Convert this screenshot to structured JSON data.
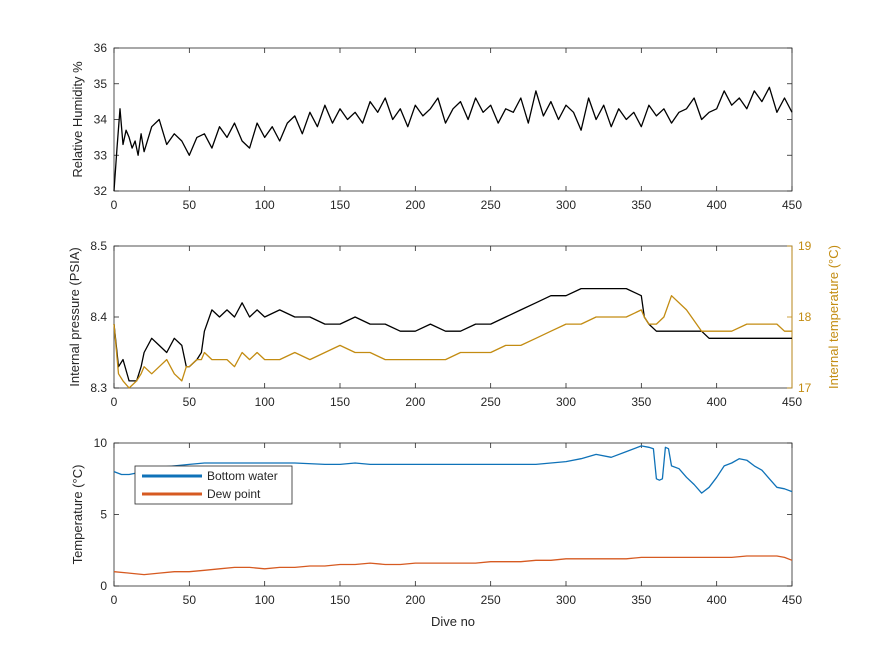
{
  "figure": {
    "xlabel": "Dive no"
  },
  "colors": {
    "black": "#000000",
    "gold": "#c38c12",
    "blue": "#0f72b8",
    "orange": "#d65a21",
    "axis": "#262626"
  },
  "chart_data": [
    {
      "type": "line",
      "xlabel": "",
      "ylabel": "Relative Humidity %",
      "xlim": [
        0,
        450
      ],
      "ylim": [
        32,
        36
      ],
      "xticks": [
        "0",
        "50",
        "100",
        "150",
        "200",
        "250",
        "300",
        "350",
        "400",
        "450"
      ],
      "yticks": [
        "32",
        "33",
        "34",
        "35",
        "36"
      ],
      "grid": false,
      "series": [
        {
          "color": "#000000",
          "x": [
            0,
            2,
            4,
            6,
            8,
            10,
            12,
            14,
            16,
            18,
            20,
            25,
            30,
            35,
            40,
            45,
            50,
            55,
            60,
            65,
            70,
            75,
            80,
            85,
            90,
            95,
            100,
            105,
            110,
            115,
            120,
            125,
            130,
            135,
            140,
            145,
            150,
            155,
            160,
            165,
            170,
            175,
            180,
            185,
            190,
            195,
            200,
            205,
            210,
            215,
            220,
            225,
            230,
            235,
            240,
            245,
            250,
            255,
            260,
            265,
            270,
            275,
            280,
            285,
            290,
            295,
            300,
            305,
            310,
            315,
            320,
            325,
            330,
            335,
            340,
            345,
            350,
            355,
            360,
            365,
            370,
            375,
            380,
            385,
            390,
            395,
            400,
            405,
            410,
            415,
            420,
            425,
            430,
            435,
            440,
            445,
            450
          ],
          "values": [
            32.0,
            33.2,
            34.3,
            33.3,
            33.7,
            33.5,
            33.2,
            33.4,
            33.0,
            33.6,
            33.1,
            33.8,
            34.0,
            33.3,
            33.6,
            33.4,
            33.0,
            33.5,
            33.6,
            33.2,
            33.8,
            33.5,
            33.9,
            33.4,
            33.2,
            33.9,
            33.5,
            33.8,
            33.4,
            33.9,
            34.1,
            33.6,
            34.2,
            33.8,
            34.4,
            33.9,
            34.3,
            34.0,
            34.2,
            33.9,
            34.5,
            34.2,
            34.6,
            34.0,
            34.3,
            33.8,
            34.4,
            34.1,
            34.3,
            34.6,
            33.9,
            34.3,
            34.5,
            34.0,
            34.6,
            34.2,
            34.4,
            33.9,
            34.3,
            34.2,
            34.6,
            33.9,
            34.8,
            34.1,
            34.5,
            34.0,
            34.4,
            34.2,
            33.7,
            34.6,
            34.0,
            34.4,
            33.8,
            34.3,
            34.0,
            34.2,
            33.8,
            34.4,
            34.1,
            34.3,
            33.9,
            34.2,
            34.3,
            34.6,
            34.0,
            34.2,
            34.3,
            34.8,
            34.4,
            34.6,
            34.3,
            34.8,
            34.5,
            34.9,
            34.2,
            34.6,
            34.2
          ]
        }
      ]
    },
    {
      "type": "line",
      "xlabel": "",
      "ylabel": "Internal pressure (PSIA)",
      "y2label": "Internal temperature (°C)",
      "xlim": [
        0,
        450
      ],
      "ylim": [
        8.3,
        8.5
      ],
      "y2lim": [
        17,
        19
      ],
      "xticks": [
        "0",
        "50",
        "100",
        "150",
        "200",
        "250",
        "300",
        "350",
        "400",
        "450"
      ],
      "yticks": [
        "8.3",
        "8.4",
        "8.5"
      ],
      "y2ticks": [
        "17",
        "18",
        "19"
      ],
      "grid": false,
      "series": [
        {
          "axis": "left",
          "color": "#000000",
          "x": [
            0,
            3,
            6,
            10,
            15,
            18,
            20,
            25,
            30,
            35,
            40,
            45,
            48,
            50,
            55,
            58,
            60,
            65,
            70,
            75,
            80,
            85,
            90,
            95,
            100,
            110,
            120,
            130,
            140,
            150,
            160,
            170,
            180,
            190,
            200,
            210,
            220,
            230,
            240,
            250,
            260,
            270,
            280,
            290,
            300,
            310,
            320,
            330,
            340,
            350,
            352,
            355,
            360,
            365,
            370,
            380,
            390,
            395,
            400,
            410,
            420,
            430,
            440,
            445,
            450
          ],
          "values": [
            8.39,
            8.33,
            8.34,
            8.31,
            8.31,
            8.33,
            8.35,
            8.37,
            8.36,
            8.35,
            8.37,
            8.36,
            8.33,
            8.33,
            8.34,
            8.35,
            8.38,
            8.41,
            8.4,
            8.41,
            8.4,
            8.42,
            8.4,
            8.41,
            8.4,
            8.41,
            8.4,
            8.4,
            8.39,
            8.39,
            8.4,
            8.39,
            8.39,
            8.38,
            8.38,
            8.39,
            8.38,
            8.38,
            8.39,
            8.39,
            8.4,
            8.41,
            8.42,
            8.43,
            8.43,
            8.44,
            8.44,
            8.44,
            8.44,
            8.43,
            8.4,
            8.39,
            8.38,
            8.38,
            8.38,
            8.38,
            8.38,
            8.37,
            8.37,
            8.37,
            8.37,
            8.37,
            8.37,
            8.37,
            8.37
          ]
        },
        {
          "axis": "right",
          "color": "#c38c12",
          "x": [
            0,
            3,
            6,
            10,
            15,
            18,
            20,
            25,
            30,
            35,
            40,
            45,
            48,
            50,
            55,
            58,
            60,
            65,
            70,
            75,
            80,
            85,
            90,
            95,
            100,
            110,
            120,
            130,
            140,
            150,
            160,
            170,
            180,
            190,
            200,
            210,
            220,
            230,
            240,
            250,
            260,
            270,
            280,
            290,
            300,
            310,
            320,
            330,
            340,
            350,
            352,
            355,
            360,
            365,
            370,
            380,
            390,
            395,
            400,
            410,
            420,
            430,
            440,
            445,
            450
          ],
          "values": [
            17.9,
            17.2,
            17.1,
            17.0,
            17.1,
            17.2,
            17.3,
            17.2,
            17.3,
            17.4,
            17.2,
            17.1,
            17.3,
            17.3,
            17.4,
            17.4,
            17.5,
            17.4,
            17.4,
            17.4,
            17.3,
            17.5,
            17.4,
            17.5,
            17.4,
            17.4,
            17.5,
            17.4,
            17.5,
            17.6,
            17.5,
            17.5,
            17.4,
            17.4,
            17.4,
            17.4,
            17.4,
            17.5,
            17.5,
            17.5,
            17.6,
            17.6,
            17.7,
            17.8,
            17.9,
            17.9,
            18.0,
            18.0,
            18.0,
            18.1,
            18.0,
            17.9,
            17.9,
            18.0,
            18.3,
            18.1,
            17.8,
            17.8,
            17.8,
            17.8,
            17.9,
            17.9,
            17.9,
            17.8,
            17.8
          ]
        }
      ]
    },
    {
      "type": "line",
      "xlabel": "Dive no",
      "ylabel": "Temperature (°C)",
      "xlim": [
        0,
        450
      ],
      "ylim": [
        0,
        10
      ],
      "xticks": [
        "0",
        "50",
        "100",
        "150",
        "200",
        "250",
        "300",
        "350",
        "400",
        "450"
      ],
      "yticks": [
        "0",
        "5",
        "10"
      ],
      "grid": false,
      "legend": "top-left",
      "series": [
        {
          "name": "Bottom water",
          "color": "#0f72b8",
          "x": [
            0,
            5,
            10,
            15,
            20,
            30,
            40,
            50,
            60,
            80,
            100,
            120,
            140,
            150,
            160,
            170,
            180,
            200,
            220,
            240,
            260,
            280,
            290,
            300,
            310,
            320,
            330,
            340,
            350,
            355,
            358,
            360,
            362,
            364,
            366,
            368,
            370,
            375,
            380,
            385,
            390,
            395,
            400,
            405,
            410,
            415,
            420,
            425,
            430,
            435,
            440,
            445,
            450
          ],
          "values": [
            8.0,
            7.8,
            7.8,
            7.9,
            8.2,
            8.3,
            8.4,
            8.5,
            8.6,
            8.6,
            8.6,
            8.6,
            8.5,
            8.5,
            8.6,
            8.5,
            8.5,
            8.5,
            8.5,
            8.5,
            8.5,
            8.5,
            8.6,
            8.7,
            8.9,
            9.2,
            9.0,
            9.4,
            9.8,
            9.7,
            9.6,
            7.5,
            7.4,
            7.5,
            9.7,
            9.6,
            8.4,
            8.2,
            7.6,
            7.1,
            6.5,
            6.9,
            7.6,
            8.4,
            8.6,
            8.9,
            8.8,
            8.4,
            8.1,
            7.5,
            6.9,
            6.8,
            6.6
          ]
        },
        {
          "name": "Dew point",
          "color": "#d65a21",
          "x": [
            0,
            10,
            20,
            30,
            40,
            50,
            60,
            70,
            80,
            90,
            100,
            110,
            120,
            130,
            140,
            150,
            160,
            170,
            180,
            190,
            200,
            210,
            220,
            230,
            240,
            250,
            260,
            270,
            280,
            290,
            300,
            310,
            320,
            330,
            340,
            350,
            360,
            370,
            380,
            390,
            400,
            410,
            420,
            430,
            440,
            445,
            450
          ],
          "values": [
            1.0,
            0.9,
            0.8,
            0.9,
            1.0,
            1.0,
            1.1,
            1.2,
            1.3,
            1.3,
            1.2,
            1.3,
            1.3,
            1.4,
            1.4,
            1.5,
            1.5,
            1.6,
            1.5,
            1.5,
            1.6,
            1.6,
            1.6,
            1.6,
            1.6,
            1.7,
            1.7,
            1.7,
            1.8,
            1.8,
            1.9,
            1.9,
            1.9,
            1.9,
            1.9,
            2.0,
            2.0,
            2.0,
            2.0,
            2.0,
            2.0,
            2.0,
            2.1,
            2.1,
            2.1,
            2.0,
            1.8
          ]
        }
      ]
    }
  ]
}
